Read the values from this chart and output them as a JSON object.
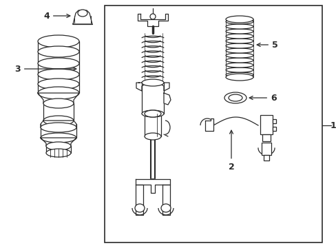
{
  "bg_color": "#ffffff",
  "line_color": "#2a2a2a",
  "label_1": "1",
  "label_2": "2",
  "label_3": "3",
  "label_4": "4",
  "label_5": "5",
  "label_6": "6",
  "font_size_labels": 9,
  "line_width": 0.9
}
